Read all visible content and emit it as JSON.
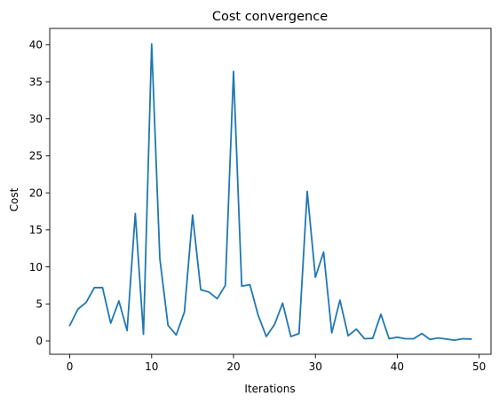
{
  "chart_data": {
    "type": "line",
    "title": "Cost convergence",
    "xlabel": "Iterations",
    "ylabel": "Cost",
    "xlim": [
      -2.45,
      51.45
    ],
    "ylim": [
      -1.8,
      42.2
    ],
    "xticks": [
      0,
      10,
      20,
      30,
      40,
      50
    ],
    "yticks": [
      0,
      5,
      10,
      15,
      20,
      25,
      30,
      35,
      40
    ],
    "grid": false,
    "legend": "none",
    "series_color": "#1f77b4",
    "series": [
      {
        "x": [
          0,
          1,
          2,
          3,
          4,
          5,
          6,
          7,
          8,
          9,
          10,
          11,
          12,
          13,
          14,
          15,
          16,
          17,
          18,
          19,
          20,
          21,
          22,
          23,
          24,
          25,
          26,
          27,
          28,
          29,
          30,
          31,
          32,
          33,
          34,
          35,
          36,
          37,
          38,
          39,
          40,
          41,
          42,
          43,
          44,
          45,
          46,
          47,
          48,
          49
        ],
        "values": [
          2.1,
          4.3,
          5.2,
          7.2,
          7.2,
          2.4,
          5.4,
          1.4,
          17.2,
          0.9,
          40.1,
          11.1,
          2.1,
          0.8,
          3.9,
          17.0,
          6.9,
          6.6,
          5.7,
          7.5,
          36.4,
          7.4,
          7.6,
          3.5,
          0.6,
          2.2,
          5.1,
          0.6,
          1.0,
          20.2,
          8.6,
          12.0,
          1.1,
          5.5,
          0.7,
          1.6,
          0.3,
          0.35,
          3.6,
          0.3,
          0.5,
          0.3,
          0.3,
          1.0,
          0.2,
          0.4,
          0.25,
          0.1,
          0.3,
          0.25
        ]
      }
    ]
  }
}
